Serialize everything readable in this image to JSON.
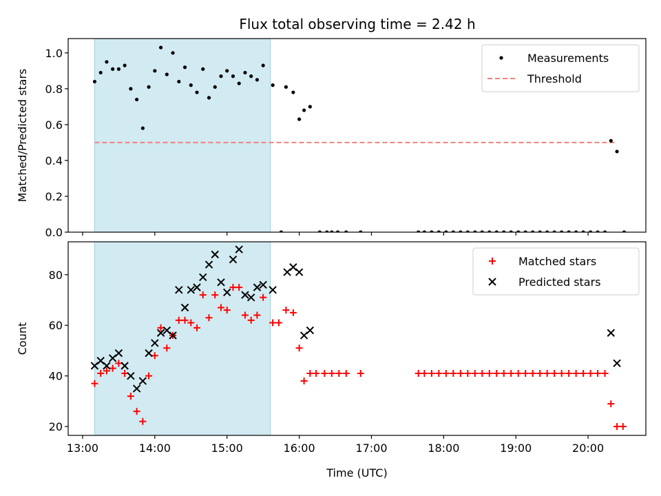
{
  "title": "Flux total observing time = 2.42 h",
  "chart_data": [
    {
      "type": "scatter",
      "ylabel": "Matched/Predicted stars",
      "xlabel": "",
      "xlim": [
        "12:48",
        "20:48"
      ],
      "ylim": [
        0,
        1.08
      ],
      "yticks": [
        "0.0",
        "0.2",
        "0.4",
        "0.6",
        "0.8",
        "1.0"
      ],
      "grid": false,
      "legend": "top-right",
      "shaded_span": [
        "13:10",
        "15:36"
      ],
      "shaded_color": "#add8e6",
      "threshold": {
        "name": "Threshold",
        "value": 0.5,
        "x": [
          "13:10",
          "20:22"
        ],
        "color": "#f08080",
        "style": "dashed"
      },
      "series": [
        {
          "name": "Measurements",
          "marker": "dot",
          "color": "#000000",
          "points": [
            [
              "13:10",
              0.84
            ],
            [
              "13:15",
              0.89
            ],
            [
              "13:20",
              0.95
            ],
            [
              "13:25",
              0.91
            ],
            [
              "13:30",
              0.91
            ],
            [
              "13:35",
              0.93
            ],
            [
              "13:40",
              0.8
            ],
            [
              "13:45",
              0.74
            ],
            [
              "13:50",
              0.58
            ],
            [
              "13:55",
              0.81
            ],
            [
              "14:00",
              0.9
            ],
            [
              "14:05",
              1.03
            ],
            [
              "14:10",
              0.88
            ],
            [
              "14:15",
              1.0
            ],
            [
              "14:20",
              0.84
            ],
            [
              "14:25",
              0.92
            ],
            [
              "14:30",
              0.82
            ],
            [
              "14:35",
              0.78
            ],
            [
              "14:40",
              0.91
            ],
            [
              "14:45",
              0.75
            ],
            [
              "14:50",
              0.81
            ],
            [
              "14:55",
              0.87
            ],
            [
              "15:00",
              0.9
            ],
            [
              "15:05",
              0.87
            ],
            [
              "15:10",
              0.83
            ],
            [
              "15:15",
              0.89
            ],
            [
              "15:20",
              0.87
            ],
            [
              "15:25",
              0.85
            ],
            [
              "15:30",
              0.93
            ],
            [
              "15:38",
              0.82
            ],
            [
              "15:45",
              0.0
            ],
            [
              "15:49",
              0.81
            ],
            [
              "15:55",
              0.78
            ],
            [
              "16:00",
              0.63
            ],
            [
              "16:04",
              0.68
            ],
            [
              "16:09",
              0.7
            ],
            [
              "16:17",
              0.0
            ],
            [
              "16:23",
              0.0
            ],
            [
              "16:27",
              0.0
            ],
            [
              "16:32",
              0.0
            ],
            [
              "16:39",
              0.0
            ],
            [
              "16:51",
              0.0
            ],
            [
              "17:39",
              0.0
            ],
            [
              "17:44",
              0.0
            ],
            [
              "17:50",
              0.0
            ],
            [
              "17:56",
              0.0
            ],
            [
              "18:02",
              0.0
            ],
            [
              "18:08",
              0.0
            ],
            [
              "18:14",
              0.0
            ],
            [
              "18:20",
              0.0
            ],
            [
              "18:26",
              0.0
            ],
            [
              "18:32",
              0.0
            ],
            [
              "18:38",
              0.0
            ],
            [
              "18:44",
              0.0
            ],
            [
              "18:50",
              0.0
            ],
            [
              "18:56",
              0.0
            ],
            [
              "19:02",
              0.0
            ],
            [
              "19:08",
              0.0
            ],
            [
              "19:14",
              0.0
            ],
            [
              "19:20",
              0.0
            ],
            [
              "19:26",
              0.0
            ],
            [
              "19:32",
              0.0
            ],
            [
              "19:38",
              0.0
            ],
            [
              "19:44",
              0.0
            ],
            [
              "19:50",
              0.0
            ],
            [
              "19:56",
              0.0
            ],
            [
              "20:02",
              0.0
            ],
            [
              "20:08",
              0.0
            ],
            [
              "20:14",
              0.0
            ],
            [
              "20:19",
              0.51
            ],
            [
              "20:24",
              0.45
            ],
            [
              "20:30",
              0.0
            ]
          ]
        }
      ]
    },
    {
      "type": "scatter",
      "ylabel": "Count",
      "xlabel": "Time (UTC)",
      "xlim": [
        "12:48",
        "20:48"
      ],
      "ylim": [
        16.5,
        93
      ],
      "yticks": [
        "20",
        "40",
        "60",
        "80"
      ],
      "xticks": [
        "13:00",
        "14:00",
        "15:00",
        "16:00",
        "17:00",
        "18:00",
        "19:00",
        "20:00"
      ],
      "grid": false,
      "legend": "top-right",
      "shaded_span": [
        "13:10",
        "15:36"
      ],
      "shaded_color": "#add8e6",
      "series": [
        {
          "name": "Matched stars",
          "marker": "plus",
          "color": "#ff0000",
          "points": [
            [
              "13:10",
              37
            ],
            [
              "13:15",
              41
            ],
            [
              "13:20",
              42
            ],
            [
              "13:25",
              43
            ],
            [
              "13:30",
              45
            ],
            [
              "13:35",
              41
            ],
            [
              "13:40",
              32
            ],
            [
              "13:45",
              26
            ],
            [
              "13:50",
              22
            ],
            [
              "13:55",
              40
            ],
            [
              "14:00",
              48
            ],
            [
              "14:05",
              59
            ],
            [
              "14:10",
              51
            ],
            [
              "14:15",
              56
            ],
            [
              "14:20",
              62
            ],
            [
              "14:25",
              62
            ],
            [
              "14:30",
              61
            ],
            [
              "14:35",
              59
            ],
            [
              "14:40",
              72
            ],
            [
              "14:45",
              63
            ],
            [
              "14:50",
              72
            ],
            [
              "14:55",
              67
            ],
            [
              "15:00",
              66
            ],
            [
              "15:05",
              75
            ],
            [
              "15:10",
              75
            ],
            [
              "15:15",
              64
            ],
            [
              "15:20",
              62
            ],
            [
              "15:25",
              64
            ],
            [
              "15:30",
              71
            ],
            [
              "15:38",
              61
            ],
            [
              "15:43",
              61
            ],
            [
              "15:49",
              66
            ],
            [
              "15:55",
              65
            ],
            [
              "16:00",
              51
            ],
            [
              "16:04",
              38
            ],
            [
              "16:09",
              41
            ],
            [
              "16:14",
              41
            ],
            [
              "16:21",
              41
            ],
            [
              "16:27",
              41
            ],
            [
              "16:33",
              41
            ],
            [
              "16:39",
              41
            ],
            [
              "16:51",
              41
            ],
            [
              "17:39",
              41
            ],
            [
              "17:44",
              41
            ],
            [
              "17:50",
              41
            ],
            [
              "17:56",
              41
            ],
            [
              "18:02",
              41
            ],
            [
              "18:08",
              41
            ],
            [
              "18:14",
              41
            ],
            [
              "18:20",
              41
            ],
            [
              "18:26",
              41
            ],
            [
              "18:32",
              41
            ],
            [
              "18:38",
              41
            ],
            [
              "18:44",
              41
            ],
            [
              "18:50",
              41
            ],
            [
              "18:56",
              41
            ],
            [
              "19:02",
              41
            ],
            [
              "19:08",
              41
            ],
            [
              "19:14",
              41
            ],
            [
              "19:20",
              41
            ],
            [
              "19:26",
              41
            ],
            [
              "19:32",
              41
            ],
            [
              "19:38",
              41
            ],
            [
              "19:44",
              41
            ],
            [
              "19:50",
              41
            ],
            [
              "19:56",
              41
            ],
            [
              "20:02",
              41
            ],
            [
              "20:08",
              41
            ],
            [
              "20:14",
              41
            ],
            [
              "20:19",
              29
            ],
            [
              "20:24",
              20
            ],
            [
              "20:29",
              20
            ]
          ]
        },
        {
          "name": "Predicted stars",
          "marker": "cross",
          "color": "#000000",
          "points": [
            [
              "13:10",
              44
            ],
            [
              "13:15",
              46
            ],
            [
              "13:20",
              44
            ],
            [
              "13:25",
              47
            ],
            [
              "13:30",
              49
            ],
            [
              "13:35",
              44
            ],
            [
              "13:40",
              40
            ],
            [
              "13:45",
              35
            ],
            [
              "13:50",
              38
            ],
            [
              "13:55",
              49
            ],
            [
              "14:00",
              53
            ],
            [
              "14:05",
              57
            ],
            [
              "14:10",
              58
            ],
            [
              "14:15",
              56
            ],
            [
              "14:20",
              74
            ],
            [
              "14:25",
              67
            ],
            [
              "14:30",
              74
            ],
            [
              "14:35",
              75
            ],
            [
              "14:40",
              79
            ],
            [
              "14:45",
              84
            ],
            [
              "14:50",
              88
            ],
            [
              "14:55",
              77
            ],
            [
              "15:00",
              73
            ],
            [
              "15:05",
              86
            ],
            [
              "15:10",
              90
            ],
            [
              "15:15",
              72
            ],
            [
              "15:20",
              71
            ],
            [
              "15:25",
              75
            ],
            [
              "15:30",
              76
            ],
            [
              "15:38",
              74
            ],
            [
              "15:50",
              81
            ],
            [
              "15:55",
              83
            ],
            [
              "16:00",
              81
            ],
            [
              "16:04",
              56
            ],
            [
              "16:09",
              58
            ],
            [
              "20:19",
              57
            ],
            [
              "20:24",
              45
            ]
          ]
        }
      ]
    }
  ]
}
